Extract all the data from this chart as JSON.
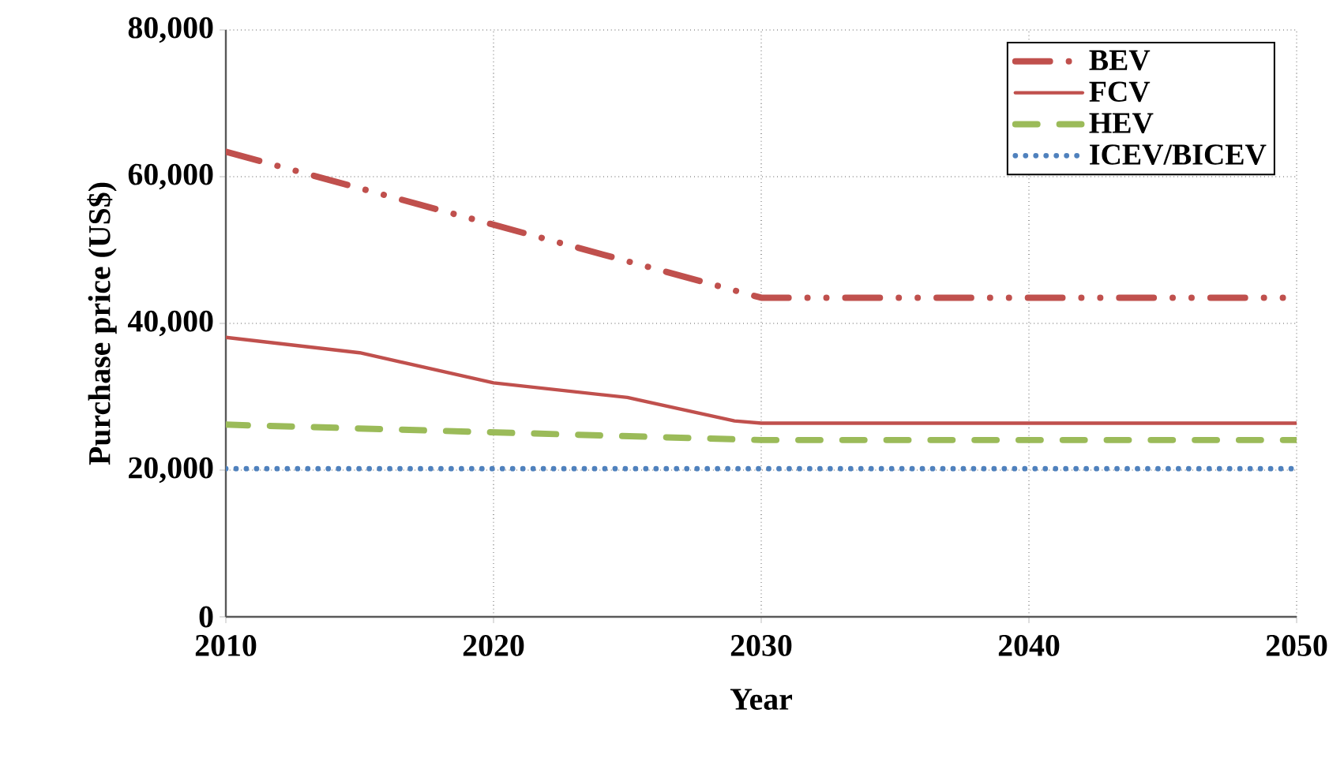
{
  "chart_data": {
    "type": "line",
    "xlabel": "Year",
    "ylabel": "Purchase price (US$)",
    "xlim": [
      2010,
      2050
    ],
    "xticks": [
      2010,
      2020,
      2030,
      2040,
      2050
    ],
    "ylim": [
      0,
      80000
    ],
    "yticks": [
      0,
      {
        "value": 20000,
        "label": "20,000"
      },
      {
        "value": 40000,
        "label": "40,000"
      },
      {
        "value": 60000,
        "label": "60,000"
      },
      {
        "value": 80000,
        "label": "80,000"
      }
    ],
    "grid": true,
    "legend": "top right",
    "marker": "none",
    "series": [
      {
        "name": "BEV",
        "color": "#c0504d",
        "line_style": "dashdotdotted",
        "x": [
          2010,
          2030,
          2050
        ],
        "values": [
          63400,
          43500,
          43500
        ]
      },
      {
        "name": "FCV",
        "color": "#c0504d",
        "line_style": "solid",
        "x": [
          2010,
          2015,
          2020,
          2025,
          2029,
          2030,
          2050
        ],
        "values": [
          38100,
          36000,
          31900,
          29900,
          26700,
          26400,
          26400
        ]
      },
      {
        "name": "HEV",
        "color": "#9bbb59",
        "line_style": "dashed",
        "x": [
          2010,
          2030,
          2050
        ],
        "values": [
          26200,
          24100,
          24100
        ]
      },
      {
        "name": "ICEV/BICEV",
        "color": "#4f81bd",
        "line_style": "dotted",
        "x": [
          2010,
          2050
        ],
        "values": [
          20200,
          20200
        ]
      }
    ]
  }
}
